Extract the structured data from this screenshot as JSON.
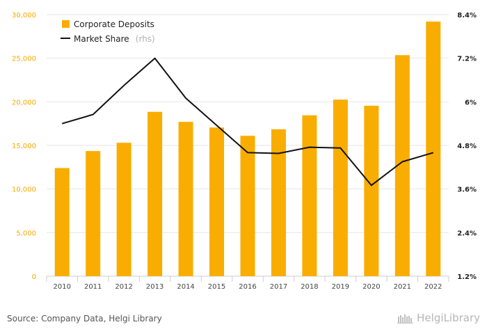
{
  "chart_data": {
    "type": "bar",
    "categories": [
      "2010",
      "2011",
      "2012",
      "2013",
      "2014",
      "2015",
      "2016",
      "2017",
      "2018",
      "2019",
      "2020",
      "2021",
      "2022"
    ],
    "series": [
      {
        "name": "Corporate Deposits",
        "type": "bar",
        "axis": "left",
        "color": "#f9ad00",
        "values": [
          12400,
          14350,
          15300,
          18850,
          17700,
          17050,
          16100,
          16850,
          18450,
          20250,
          19550,
          25350,
          29200
        ]
      },
      {
        "name": "Market Share",
        "note": "(rhs)",
        "type": "line",
        "axis": "right",
        "color": "#111111",
        "values": [
          5.4,
          5.65,
          6.45,
          7.2,
          6.1,
          5.35,
          4.6,
          4.58,
          4.75,
          4.73,
          3.7,
          4.35,
          4.6
        ]
      }
    ],
    "left_axis": {
      "ylim": [
        0,
        30000
      ],
      "ticks": [
        "0",
        "5,000",
        "10,000",
        "15,000",
        "20,000",
        "25,000",
        "30,000"
      ],
      "tick_values": [
        0,
        5000,
        10000,
        15000,
        20000,
        25000,
        30000
      ],
      "color": "#f5a800"
    },
    "right_axis": {
      "ylim": [
        1.2,
        8.4
      ],
      "ticks": [
        "1.2%",
        "2.4%",
        "3.6%",
        "4.8%",
        "6%",
        "7.2%",
        "8.4%"
      ],
      "tick_values": [
        1.2,
        2.4,
        3.6,
        4.8,
        6.0,
        7.2,
        8.4
      ]
    },
    "legend_position": "top-left",
    "grid": true
  },
  "footer": {
    "source": "Source: Company Data, Helgi Library",
    "brand": "HelgiLibrary"
  }
}
